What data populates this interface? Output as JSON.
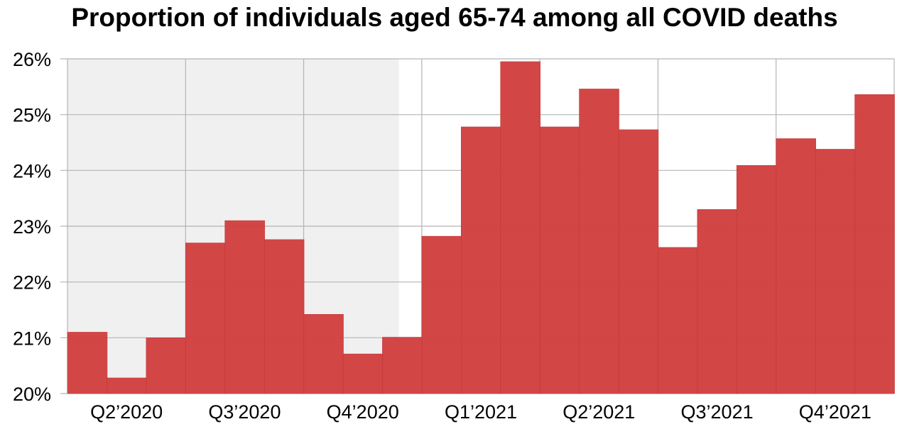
{
  "chart_data": {
    "type": "bar",
    "title": "Proportion of individuals aged 65-74 among all COVID deaths",
    "xlabel": "",
    "ylabel": "",
    "ylim": [
      20,
      26
    ],
    "y_ticks": [
      "20%",
      "21%",
      "22%",
      "23%",
      "24%",
      "25%",
      "26%"
    ],
    "grid": true,
    "categories": [
      "Apr 2020",
      "May 2020",
      "Jun 2020",
      "Jul 2020",
      "Aug 2020",
      "Sep 2020",
      "Oct 2020",
      "Nov 2020",
      "Dec 2020",
      "Jan 2021",
      "Feb 2021",
      "Mar 2021",
      "Apr 2021",
      "May 2021",
      "Jun 2021",
      "Jul 2021",
      "Aug 2021",
      "Sep 2021",
      "Oct 2021",
      "Nov 2021",
      "Dec 2021"
    ],
    "values": [
      21.1,
      20.28,
      21.0,
      22.7,
      23.1,
      22.76,
      21.42,
      20.71,
      21.01,
      22.82,
      24.78,
      25.95,
      24.78,
      25.46,
      24.73,
      22.62,
      23.3,
      24.09,
      24.57,
      24.38,
      25.36
    ],
    "quarter_labels": [
      "Q2’2020",
      "Q3’2020",
      "Q4’2020",
      "Q1’2021",
      "Q2’2021",
      "Q3’2021",
      "Q4’2021"
    ],
    "shaded_region_categories": [
      "Apr 2020",
      "Dec 2020"
    ],
    "colors": {
      "bar": "#d24040",
      "shade": "#f0f0f0",
      "grid": "#b4b4b4"
    }
  }
}
